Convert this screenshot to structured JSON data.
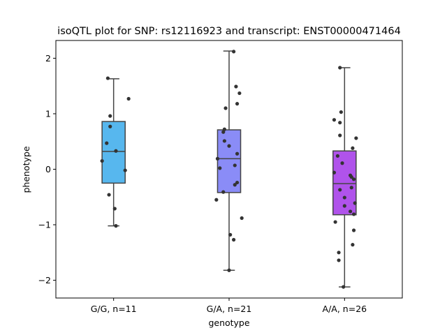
{
  "chart_data": {
    "type": "box",
    "title": "isoQTL plot for SNP: rs12116923 and transcript: ENST00000471464",
    "xlabel": "genotype",
    "ylabel": "phenotype",
    "ylim": [
      -2.32,
      2.32
    ],
    "yticks": [
      2,
      1,
      0,
      -1,
      -2
    ],
    "ytick_labels": [
      "2",
      "1",
      "0",
      "−1",
      "−2"
    ],
    "grid": false,
    "categories": [
      "G/G, n=11",
      "G/A, n=21",
      "A/A, n=26"
    ],
    "box_colors": [
      "#57b7ee",
      "#8a8cf7",
      "#b053eb"
    ],
    "point_color": "#333333",
    "box_stats": [
      {
        "whisker_low": -1.02,
        "q1": -0.25,
        "median": 0.32,
        "q3": 0.86,
        "whisker_high": 1.63
      },
      {
        "whisker_low": -1.82,
        "q1": -0.42,
        "median": 0.19,
        "q3": 0.71,
        "whisker_high": 2.13
      },
      {
        "whisker_low": -2.12,
        "q1": -0.82,
        "median": -0.26,
        "q3": 0.33,
        "whisker_high": 1.83
      }
    ],
    "points": [
      [
        {
          "x": -0.05,
          "y": 1.64
        },
        {
          "x": 0.13,
          "y": 1.27
        },
        {
          "x": -0.03,
          "y": 0.96
        },
        {
          "x": -0.03,
          "y": 0.77
        },
        {
          "x": -0.06,
          "y": 0.47
        },
        {
          "x": 0.02,
          "y": 0.33
        },
        {
          "x": -0.1,
          "y": 0.15
        },
        {
          "x": 0.1,
          "y": -0.02
        },
        {
          "x": -0.04,
          "y": -0.46
        },
        {
          "x": 0.01,
          "y": -0.71
        },
        {
          "x": 0.02,
          "y": -1.02
        }
      ],
      [
        {
          "x": 0.04,
          "y": 2.12
        },
        {
          "x": 0.06,
          "y": 1.49
        },
        {
          "x": 0.09,
          "y": 1.37
        },
        {
          "x": 0.07,
          "y": 1.18
        },
        {
          "x": -0.03,
          "y": 1.1
        },
        {
          "x": -0.04,
          "y": 0.72
        },
        {
          "x": -0.05,
          "y": 0.67
        },
        {
          "x": -0.04,
          "y": 0.51
        },
        {
          "x": 0.0,
          "y": 0.42
        },
        {
          "x": 0.07,
          "y": 0.28
        },
        {
          "x": -0.1,
          "y": 0.19
        },
        {
          "x": 0.05,
          "y": 0.07
        },
        {
          "x": -0.08,
          "y": 0.02
        },
        {
          "x": 0.07,
          "y": -0.24
        },
        {
          "x": 0.05,
          "y": -0.28
        },
        {
          "x": -0.05,
          "y": -0.41
        },
        {
          "x": -0.11,
          "y": -0.55
        },
        {
          "x": 0.11,
          "y": -0.88
        },
        {
          "x": 0.01,
          "y": -1.18
        },
        {
          "x": 0.04,
          "y": -1.27
        },
        {
          "x": 0.0,
          "y": -1.82
        }
      ],
      [
        {
          "x": -0.04,
          "y": 1.83
        },
        {
          "x": -0.03,
          "y": 1.03
        },
        {
          "x": -0.09,
          "y": 0.89
        },
        {
          "x": -0.04,
          "y": 0.84
        },
        {
          "x": -0.04,
          "y": 0.61
        },
        {
          "x": 0.1,
          "y": 0.56
        },
        {
          "x": 0.07,
          "y": 0.38
        },
        {
          "x": -0.06,
          "y": 0.24
        },
        {
          "x": -0.02,
          "y": 0.11
        },
        {
          "x": -0.09,
          "y": -0.06
        },
        {
          "x": 0.05,
          "y": -0.11
        },
        {
          "x": 0.06,
          "y": -0.14
        },
        {
          "x": 0.08,
          "y": -0.18
        },
        {
          "x": 0.06,
          "y": -0.33
        },
        {
          "x": -0.04,
          "y": -0.37
        },
        {
          "x": 0.0,
          "y": -0.51
        },
        {
          "x": 0.09,
          "y": -0.61
        },
        {
          "x": 0.0,
          "y": -0.66
        },
        {
          "x": 0.05,
          "y": -0.76
        },
        {
          "x": 0.08,
          "y": -0.81
        },
        {
          "x": -0.08,
          "y": -0.95
        },
        {
          "x": 0.08,
          "y": -1.1
        },
        {
          "x": 0.07,
          "y": -1.36
        },
        {
          "x": -0.05,
          "y": -1.5
        },
        {
          "x": -0.05,
          "y": -1.64
        },
        {
          "x": -0.01,
          "y": -2.12
        }
      ]
    ]
  }
}
